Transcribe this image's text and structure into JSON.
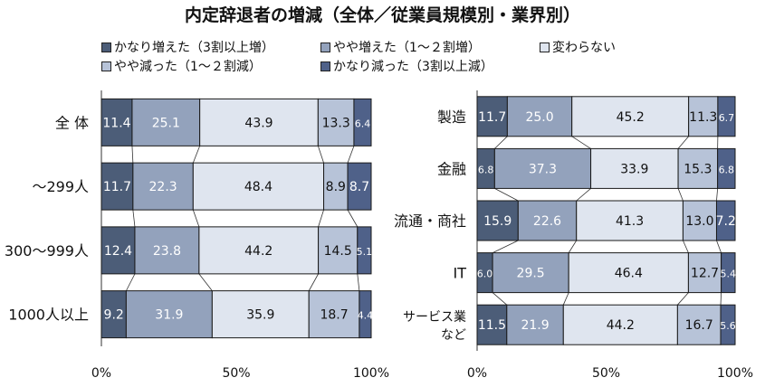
{
  "title": "内定辞退者の増減（全体／従業員規模別・業界別）",
  "colors": {
    "inc_large": "#4c5d78",
    "inc_some": "#93a2bc",
    "same": "#dfe5ef",
    "dec_some": "#b7c3d8",
    "dec_large": "#4f6189",
    "border": "#1a1a1a"
  },
  "legend": [
    {
      "key": "inc_large",
      "label": "かなり増えた（3割以上増）"
    },
    {
      "key": "inc_some",
      "label": "やや増えた（1～２割増）"
    },
    {
      "key": "same",
      "label": "変わらない"
    },
    {
      "key": "dec_some",
      "label": "やや減った（1～２割減）"
    },
    {
      "key": "dec_large",
      "label": "かなり減った（3割以上減）"
    }
  ],
  "chart_data": [
    {
      "type": "bar",
      "stacked": true,
      "orientation": "horizontal",
      "xlim": [
        0,
        100
      ],
      "x_ticks": [
        "0%",
        "50%",
        "100%"
      ],
      "categories": [
        [
          "全 体"
        ],
        [
          "～299人"
        ],
        [
          "300～999人"
        ],
        [
          "1000人以上"
        ]
      ],
      "series": [
        {
          "name": "かなり増えた（3割以上増）",
          "key": "inc_large",
          "values": [
            11.4,
            11.7,
            12.4,
            9.2
          ]
        },
        {
          "name": "やや増えた（1～２割増）",
          "key": "inc_some",
          "values": [
            25.1,
            22.3,
            23.8,
            31.9
          ]
        },
        {
          "name": "変わらない",
          "key": "same",
          "values": [
            43.9,
            48.4,
            44.2,
            35.9
          ]
        },
        {
          "name": "やや減った（1～２割減）",
          "key": "dec_some",
          "values": [
            13.3,
            8.9,
            14.5,
            18.7
          ]
        },
        {
          "name": "かなり減った（3割以上減）",
          "key": "dec_large",
          "values": [
            6.4,
            8.7,
            5.1,
            4.4
          ]
        }
      ],
      "labels": [
        [
          "11.4",
          "25.1",
          "43.9",
          "13.3",
          "6.4"
        ],
        [
          "11.7",
          "22.3",
          "48.4",
          "8.9",
          "8.7"
        ],
        [
          "12.4",
          "23.8",
          "44.2",
          "14.5",
          "5.1"
        ],
        [
          "9.2",
          "31.9",
          "35.9",
          "18.7",
          "4.4"
        ]
      ]
    },
    {
      "type": "bar",
      "stacked": true,
      "orientation": "horizontal",
      "xlim": [
        0,
        100
      ],
      "x_ticks": [
        "0%",
        "50%",
        "100%"
      ],
      "categories": [
        [
          "製造"
        ],
        [
          "金融"
        ],
        [
          "流通・商社"
        ],
        [
          "IT"
        ],
        [
          "サービス業",
          "など"
        ]
      ],
      "series": [
        {
          "name": "かなり増えた（3割以上増）",
          "key": "inc_large",
          "values": [
            11.7,
            6.8,
            15.9,
            6.0,
            11.5
          ]
        },
        {
          "name": "やや増えた（1～２割増）",
          "key": "inc_some",
          "values": [
            25.0,
            37.3,
            22.6,
            29.5,
            21.9
          ]
        },
        {
          "name": "変わらない",
          "key": "same",
          "values": [
            45.2,
            33.9,
            41.3,
            46.4,
            44.2
          ]
        },
        {
          "name": "やや減った（1～２割減）",
          "key": "dec_some",
          "values": [
            11.3,
            15.3,
            13.0,
            12.7,
            16.7
          ]
        },
        {
          "name": "かなり減った（3割以上減）",
          "key": "dec_large",
          "values": [
            6.7,
            6.8,
            7.2,
            5.4,
            5.6
          ]
        }
      ],
      "labels": [
        [
          "11.7",
          "25.0",
          "45.2",
          "11.3",
          "6.7"
        ],
        [
          "6.8",
          "37.3",
          "33.9",
          "15.3",
          "6.8"
        ],
        [
          "15.9",
          "22.6",
          "41.3",
          "13.0",
          "7.2"
        ],
        [
          "6.0",
          "29.5",
          "46.4",
          "12.7",
          "5.4"
        ],
        [
          "11.5",
          "21.9",
          "44.2",
          "16.7",
          "5.6"
        ]
      ]
    }
  ]
}
